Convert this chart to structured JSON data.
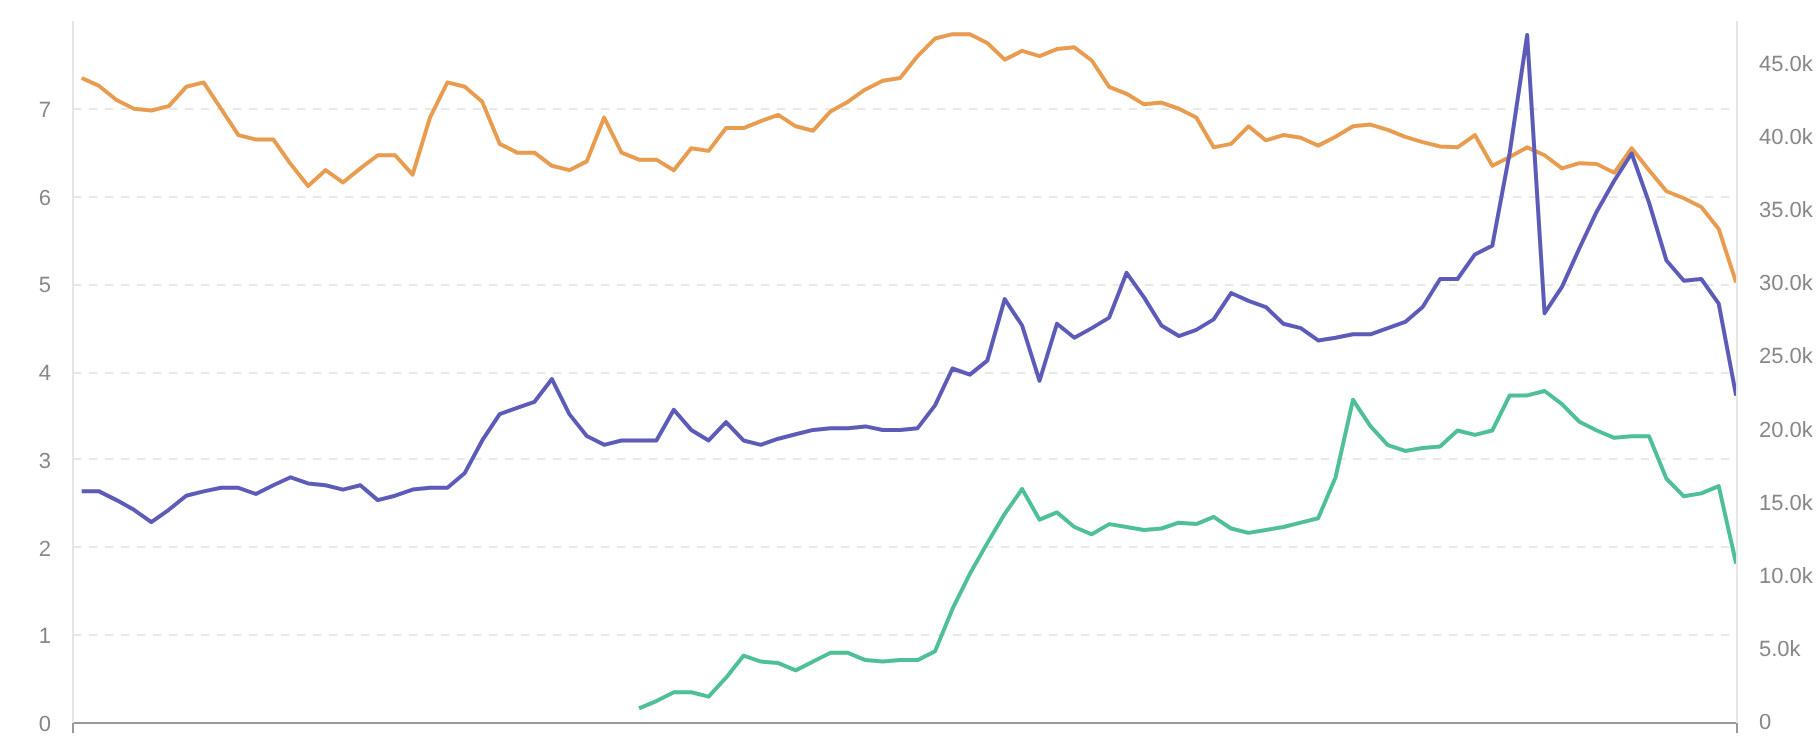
{
  "chart_data": {
    "type": "line",
    "categories": [
      null,
      null,
      null,
      null,
      null,
      null,
      null,
      null,
      null,
      null,
      null,
      null,
      null,
      null,
      null,
      null,
      null,
      null,
      null,
      null,
      null,
      null,
      null,
      null,
      null,
      null,
      null,
      null,
      null,
      null,
      null,
      null,
      null,
      null,
      null,
      null,
      null,
      null,
      null,
      null,
      null,
      null,
      null,
      null,
      null,
      null,
      null,
      null,
      null,
      null,
      null,
      null,
      null,
      null,
      null,
      null,
      null,
      null,
      null,
      null,
      null,
      null,
      null,
      null,
      null,
      null,
      null,
      null,
      null,
      null,
      null,
      null,
      null,
      null,
      null,
      null,
      null,
      null,
      null,
      null,
      null,
      null,
      null,
      null,
      null,
      null,
      null,
      null,
      null,
      null,
      null,
      null,
      null,
      null,
      null,
      null
    ],
    "series": [
      {
        "color": "#e89c4f",
        "axis": "y",
        "values": [
          7.35,
          7.26,
          7.1,
          7.0,
          6.98,
          7.03,
          7.25,
          7.3,
          7.0,
          6.7,
          6.65,
          6.65,
          6.37,
          6.12,
          6.3,
          6.16,
          6.32,
          6.47,
          6.47,
          6.25,
          6.9,
          7.3,
          7.25,
          7.08,
          6.6,
          6.5,
          6.5,
          6.35,
          6.3,
          6.4,
          6.9,
          6.5,
          6.42,
          6.42,
          6.3,
          6.55,
          6.52,
          6.78,
          6.78,
          6.86,
          6.93,
          6.8,
          6.75,
          6.97,
          7.08,
          7.22,
          7.32,
          7.35,
          7.6,
          7.8,
          7.85,
          7.85,
          7.75,
          7.56,
          7.66,
          7.6,
          7.68,
          7.7,
          7.55,
          7.25,
          7.17,
          7.05,
          7.07,
          7.0,
          6.9,
          6.56,
          6.6,
          6.8,
          6.64,
          6.7,
          6.67,
          6.58,
          6.68,
          6.8,
          6.82,
          6.76,
          6.68,
          6.62,
          6.57,
          6.56,
          6.7,
          6.35,
          6.45,
          6.56,
          6.47,
          6.32,
          6.38,
          6.37,
          6.27,
          6.55,
          6.3,
          6.06,
          5.98,
          5.88,
          5.63,
          5.02
        ]
      },
      {
        "color": "#5c5cb8",
        "axis": "y",
        "values": [
          2.64,
          2.64,
          2.54,
          2.43,
          2.29,
          2.43,
          2.59,
          2.64,
          2.68,
          2.68,
          2.61,
          2.71,
          2.8,
          2.73,
          2.71,
          2.66,
          2.71,
          2.54,
          2.59,
          2.66,
          2.68,
          2.68,
          2.85,
          3.22,
          3.52,
          3.59,
          3.66,
          3.92,
          3.52,
          3.27,
          3.17,
          3.22,
          3.22,
          3.22,
          3.57,
          3.34,
          3.22,
          3.43,
          3.22,
          3.17,
          3.24,
          3.29,
          3.34,
          3.36,
          3.36,
          3.38,
          3.34,
          3.34,
          3.36,
          3.62,
          4.04,
          3.97,
          4.13,
          4.83,
          4.53,
          3.9,
          4.55,
          4.39,
          4.5,
          4.62,
          5.13,
          4.85,
          4.53,
          4.41,
          4.48,
          4.6,
          4.9,
          4.81,
          4.74,
          4.55,
          4.5,
          4.36,
          4.39,
          4.43,
          4.43,
          4.5,
          4.57,
          4.74,
          5.06,
          5.06,
          5.34,
          5.44,
          6.5,
          7.84,
          4.67,
          4.97,
          5.41,
          5.83,
          6.18,
          6.49,
          5.93,
          5.27,
          5.04,
          5.06,
          4.78,
          3.73
        ]
      },
      {
        "color": "#4fbf95",
        "axis": "y2",
        "values": [
          null,
          null,
          null,
          null,
          null,
          null,
          null,
          null,
          null,
          null,
          null,
          null,
          null,
          null,
          null,
          null,
          null,
          null,
          null,
          null,
          null,
          null,
          null,
          null,
          null,
          null,
          null,
          null,
          null,
          null,
          null,
          null,
          1000,
          1500,
          2100,
          2100,
          1800,
          3100,
          4600,
          4200,
          4100,
          3600,
          4200,
          4800,
          4800,
          4300,
          4200,
          4300,
          4300,
          4900,
          7800,
          10200,
          12300,
          14300,
          16000,
          13900,
          14400,
          13400,
          12900,
          13600,
          13400,
          13200,
          13300,
          13700,
          13600,
          14100,
          13300,
          13000,
          13200,
          13400,
          13700,
          14000,
          16800,
          22100,
          20300,
          19000,
          18600,
          18800,
          18900,
          20000,
          19700,
          20000,
          22400,
          22400,
          22700,
          21800,
          20600,
          20000,
          19500,
          19600,
          19600,
          16700,
          15500,
          15700,
          16200,
          10900
        ]
      }
    ],
    "ylim": [
      0,
      8
    ],
    "yticks": [
      0,
      1,
      2,
      3,
      4,
      5,
      6,
      7
    ],
    "y2lim": [
      0,
      48000
    ],
    "y2ticks": [
      0,
      {
        "value": 5000,
        "label": "5.0k"
      },
      {
        "value": 10000,
        "label": "10.0k"
      },
      {
        "value": 15000,
        "label": "15.0k"
      },
      {
        "value": 20000,
        "label": "20.0k"
      },
      {
        "value": 25000,
        "label": "25.0k"
      },
      {
        "value": 30000,
        "label": "30.0k"
      },
      {
        "value": 35000,
        "label": "35.0k"
      },
      {
        "value": 40000,
        "label": "40.0k"
      },
      {
        "value": 45000,
        "label": "45.0k"
      }
    ],
    "grid": "y",
    "line_style": "solid"
  }
}
